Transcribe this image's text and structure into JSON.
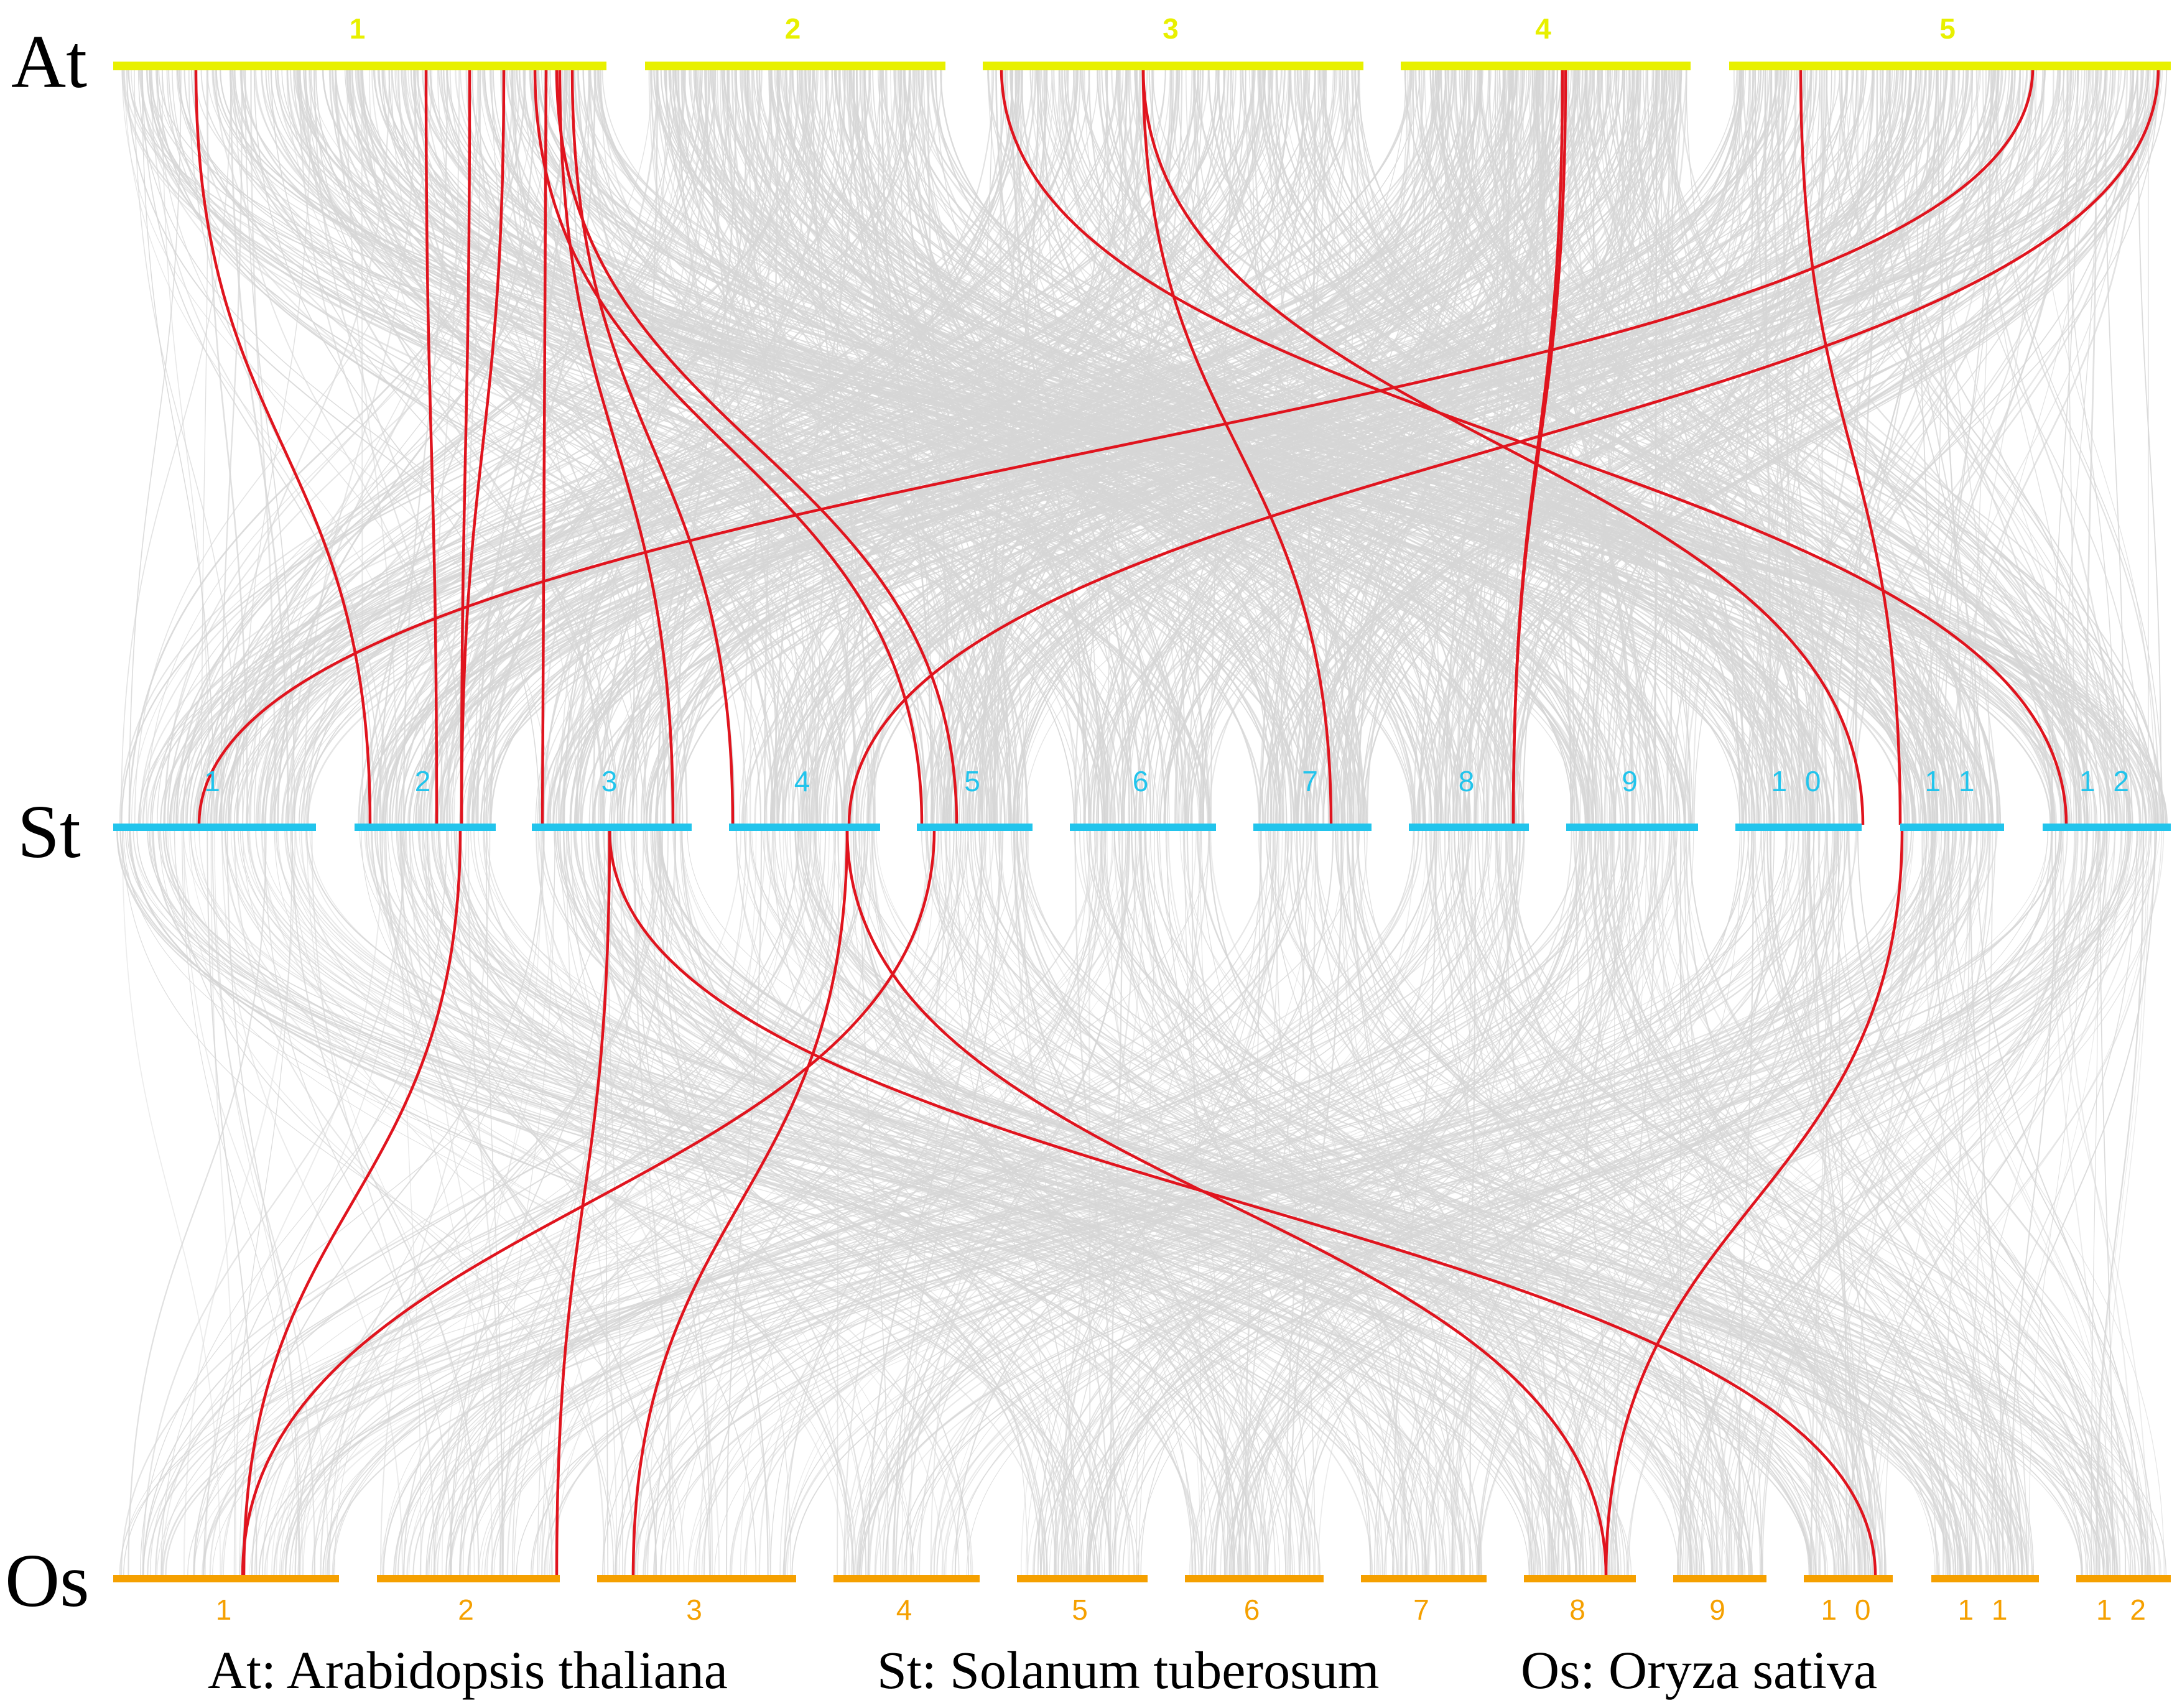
{
  "species": [
    {
      "key": "At",
      "label": "At",
      "color": "#e8f000",
      "chromosomes": [
        "1",
        "2",
        "3",
        "4",
        "5"
      ]
    },
    {
      "key": "St",
      "label": "St",
      "color": "#22c4ec",
      "chromosomes": [
        "1",
        "2",
        "3",
        "4",
        "5",
        "6",
        "7",
        "8",
        "9",
        "1 0",
        "1 1",
        "1 2"
      ]
    },
    {
      "key": "Os",
      "label": "Os",
      "color": "#f5a000",
      "chromosomes": [
        "1",
        "2",
        "3",
        "4",
        "5",
        "6",
        "7",
        "8",
        "9",
        "1 0",
        "1 1",
        "1 2"
      ]
    }
  ],
  "legend": {
    "at": "At: Arabidopsis thaliana",
    "st": "St: Solanum tuberosum",
    "os": "Os:  Oryza sativa"
  },
  "colors": {
    "background_links": "#d6d6d6",
    "highlight_links": "#e0141e"
  },
  "highlighted_links": {
    "at_st": [
      {
        "from": "At1",
        "to": "St1"
      },
      {
        "from": "At1",
        "to": "St2"
      },
      {
        "from": "At1",
        "to": "St2"
      },
      {
        "from": "At1",
        "to": "St2"
      },
      {
        "from": "At1",
        "to": "St3"
      },
      {
        "from": "At1",
        "to": "St3"
      },
      {
        "from": "At1",
        "to": "St4"
      },
      {
        "from": "At1",
        "to": "St5"
      },
      {
        "from": "At1",
        "to": "St5"
      },
      {
        "from": "At3",
        "to": "St7"
      },
      {
        "from": "At3",
        "to": "St10"
      },
      {
        "from": "At3",
        "to": "St12"
      },
      {
        "from": "At4",
        "to": "St8"
      },
      {
        "from": "At4",
        "to": "St3"
      },
      {
        "from": "At5",
        "to": "St1"
      },
      {
        "from": "At5",
        "to": "St4"
      },
      {
        "from": "At5",
        "to": "St11"
      }
    ],
    "st_os": [
      {
        "from": "St2",
        "to": "Os1"
      },
      {
        "from": "St5",
        "to": "Os1"
      },
      {
        "from": "St4",
        "to": "Os3"
      },
      {
        "from": "St4",
        "to": "Os8"
      },
      {
        "from": "St3",
        "to": "Os2"
      },
      {
        "from": "St3",
        "to": "Os10"
      },
      {
        "from": "St11",
        "to": "Os8"
      }
    ]
  }
}
